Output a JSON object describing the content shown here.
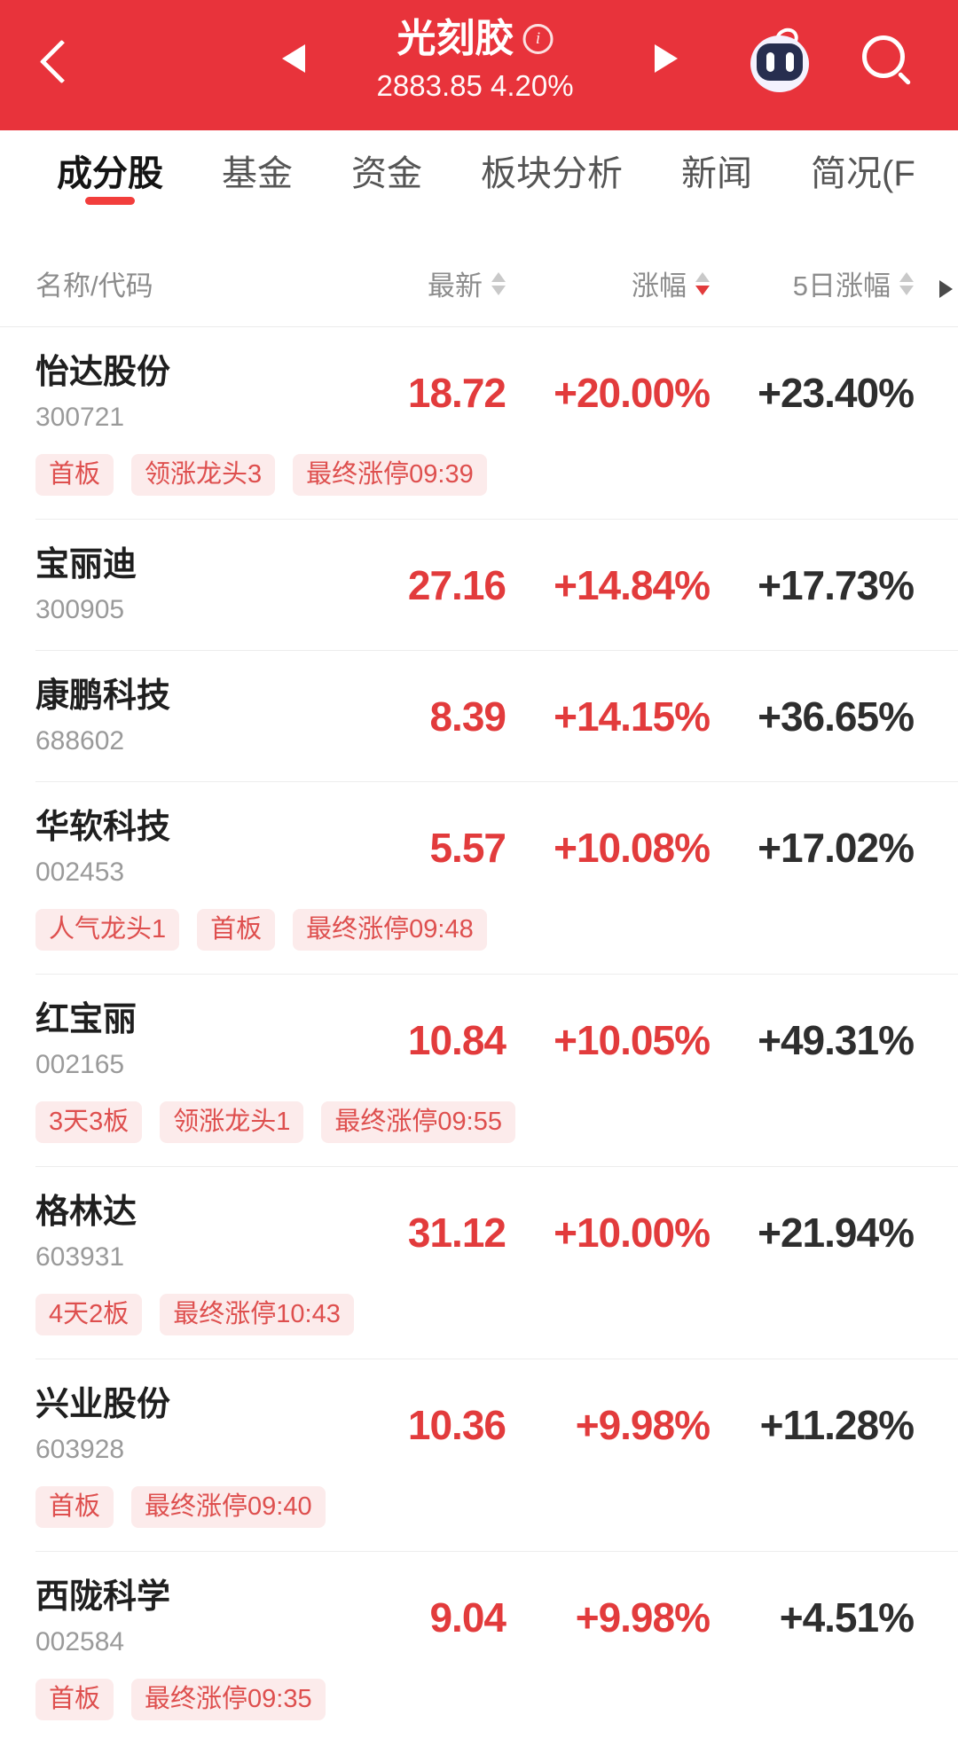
{
  "header": {
    "title": "光刻胶",
    "subtitle": "2883.85 4.20%"
  },
  "icons": {
    "back": "back-chevron",
    "prev_sector": "left-triangle",
    "info": "info-circle",
    "next_sector": "right-triangle",
    "assistant": "robot",
    "search": "magnifier",
    "sort": "up-down-triangles",
    "more_columns": "right-chevron"
  },
  "tabs": [
    {
      "label": "成分股",
      "active": true
    },
    {
      "label": "基金",
      "active": false
    },
    {
      "label": "资金",
      "active": false
    },
    {
      "label": "板块分析",
      "active": false
    },
    {
      "label": "新闻",
      "active": false
    },
    {
      "label": "简况(F",
      "active": false
    }
  ],
  "table": {
    "columns": [
      {
        "label": "名称/代码",
        "sort": null
      },
      {
        "label": "最新",
        "sort": "none"
      },
      {
        "label": "涨幅",
        "sort": "desc"
      },
      {
        "label": "5日涨幅",
        "sort": "none"
      }
    ],
    "rows": [
      {
        "name": "怡达股份",
        "code": "300721",
        "price": "18.72",
        "change": "+20.00%",
        "change_5d": "+23.40%",
        "tags": [
          "首板",
          "领涨龙头3",
          "最终涨停09:39"
        ]
      },
      {
        "name": "宝丽迪",
        "code": "300905",
        "price": "27.16",
        "change": "+14.84%",
        "change_5d": "+17.73%",
        "tags": []
      },
      {
        "name": "康鹏科技",
        "code": "688602",
        "price": "8.39",
        "change": "+14.15%",
        "change_5d": "+36.65%",
        "tags": []
      },
      {
        "name": "华软科技",
        "code": "002453",
        "price": "5.57",
        "change": "+10.08%",
        "change_5d": "+17.02%",
        "tags": [
          "人气龙头1",
          "首板",
          "最终涨停09:48"
        ]
      },
      {
        "name": "红宝丽",
        "code": "002165",
        "price": "10.84",
        "change": "+10.05%",
        "change_5d": "+49.31%",
        "tags": [
          "3天3板",
          "领涨龙头1",
          "最终涨停09:55"
        ]
      },
      {
        "name": "格林达",
        "code": "603931",
        "price": "31.12",
        "change": "+10.00%",
        "change_5d": "+21.94%",
        "tags": [
          "4天2板",
          "最终涨停10:43"
        ]
      },
      {
        "name": "兴业股份",
        "code": "603928",
        "price": "10.36",
        "change": "+9.98%",
        "change_5d": "+11.28%",
        "tags": [
          "首板",
          "最终涨停09:40"
        ]
      },
      {
        "name": "西陇科学",
        "code": "002584",
        "price": "9.04",
        "change": "+9.98%",
        "change_5d": "+4.51%",
        "tags": [
          "首板",
          "最终涨停09:35"
        ]
      }
    ]
  },
  "colors": {
    "header_background": "#e8333b",
    "value_red": "#e23b3c",
    "value_dark": "#2e2e2e",
    "tag_text": "#de4f4e",
    "tag_background": "#fcebeb",
    "active_tab_underline": "#f23e3c"
  }
}
